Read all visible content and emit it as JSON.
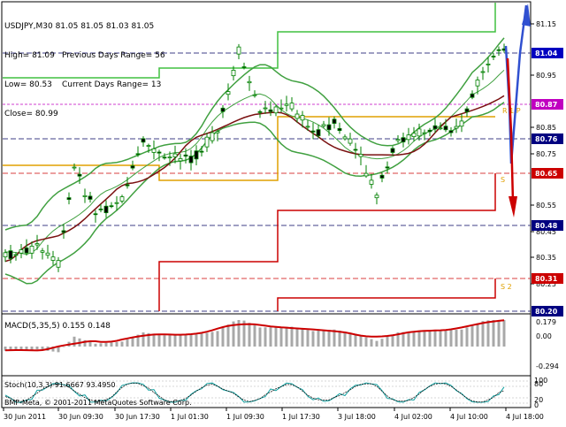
{
  "header": {
    "symbol": "USDJPY,M30",
    "ohlc": "81.05 81.05 81.03 81.05",
    "high": "High= 81.09",
    "low": "Low= 80.53",
    "close": "Close= 80.99",
    "prev_range": "Previous Days Range= 56",
    "cur_range": "Current Days Range= 13"
  },
  "macd_label": "MACD(5,35,5) 0.155 0.148",
  "stoch_label": "Stoch(10,3,3) 91.6667 93.4950",
  "copyright": "BMF-Meta, © 2001-2011 MetaQuotes Software Corp.",
  "price_axis": {
    "ticks": [
      "81.15",
      "80.95",
      "80.85",
      "80.75",
      "80.55",
      "80.45",
      "80.35",
      "80.25"
    ],
    "highlight_labels": [
      {
        "text": "81.04",
        "color": "#0000c0"
      },
      {
        "text": "80.87",
        "color": "#c000c0"
      },
      {
        "text": "80.76",
        "color": "#000080"
      },
      {
        "text": "80.65",
        "color": "#cc0000"
      },
      {
        "text": "80.48",
        "color": "#000080"
      },
      {
        "text": "80.31",
        "color": "#cc0000"
      },
      {
        "text": "80.20",
        "color": "#000080"
      }
    ]
  },
  "level_tags": [
    "R 1 P",
    "S",
    "S 2"
  ],
  "macd_axis": [
    "0.179",
    "0.00",
    "-0.294"
  ],
  "stoch_axis": [
    "100",
    "80",
    "20",
    "0"
  ],
  "time_axis": [
    "30 Jun 2011",
    "30 Jun 09:30",
    "30 Jun 17:30",
    "1 Jul 01:30",
    "1 Jul 09:30",
    "1 Jul 17:30",
    "3 Jul 18:00",
    "4 Jul 02:00",
    "4 Jul 10:00",
    "4 Jul 18:00"
  ],
  "colors": {
    "bull": "#00a000",
    "bear": "#00a000",
    "bb": "#40a040",
    "ma_slow": "#7a1010",
    "resistance": "#40c040",
    "support": "#cc0000",
    "pivot": "#e0a000",
    "macd_signal": "#cc0000",
    "arrow_up": "#3050d0",
    "arrow_down": "#cc0000"
  }
}
